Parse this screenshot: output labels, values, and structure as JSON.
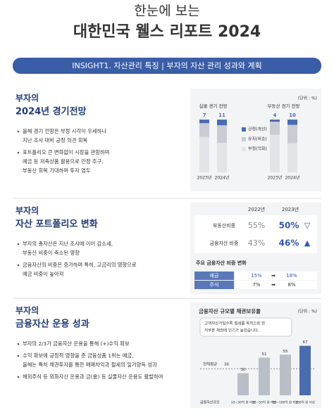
{
  "header": {
    "subtitle": "한눈에 보는",
    "title": "대한민국 웰스 리포트 2024"
  },
  "banner": "INSIGHT1. 자산관리 특징 | 부자의 자산 관리 성과와 계획",
  "sections": [
    {
      "heading": [
        "부자의",
        "2024년 경기전망"
      ],
      "bullets": [
        [
          "올해 경기 전망은 부정 시각이 우세하나",
          "지난 조사 대비 긍정 의견 회복"
        ],
        [
          "포트폴리오 큰 변화없이 시장을 관망하며",
          "예금 등 저축상품 활용으로 안정 추구,",
          "부동산 회복 기대하며 투자 염두"
        ]
      ]
    },
    {
      "heading": [
        "부자의",
        "자산 포트폴리오 변화"
      ],
      "bullets": [
        [
          "부자의 총자산은 지난 조사에 이어 감소세,",
          "부동산 비중이 축소된 영향"
        ],
        [
          "금융자산의 비중은 증가하며 특히, 고금리의 영향으로",
          "예금 비중이 높아져"
        ]
      ]
    },
    {
      "heading": [
        "부자의",
        "금융자산 운용 성과"
      ],
      "bullets": [
        [
          "부자의 2/3가 금융자산 운용을 통해 (+)수익 확보"
        ],
        [
          "수익 확보에 긍정적 영향을 준 금융상품 1위는 예금,",
          "올해는 특히 채권투자를 통한 매매차익과 절세의 일거양득 성과"
        ],
        [
          "해외주식 등 외화자산 운용과 금(金) 등 실물자산 운용도 활발하여"
        ]
      ]
    }
  ],
  "outlook_chart": {
    "type": "stacked-bar",
    "unit": "(단위 : %)",
    "legend": [
      {
        "name": "긍정(개선)",
        "color": "#4a6db0"
      },
      {
        "name": "유지(비슷)",
        "color": "#c9ccd2"
      },
      {
        "name": "부정(악화)",
        "color": "#e2e4e8"
      }
    ],
    "groups": [
      {
        "name": "실물 경기 전망",
        "categories": [
          "2023년",
          "2024년"
        ],
        "series": [
          {
            "values": [
              7,
              11
            ]
          },
          {
            "values": [
              26,
              33
            ]
          },
          {
            "values": [
              67,
              56
            ]
          }
        ]
      },
      {
        "name": "부동산 경기 전망",
        "categories": [
          "2023년",
          "2024년"
        ],
        "series": [
          {
            "values": [
              4,
              10
            ]
          },
          {
            "values": [
              25,
              35
            ]
          },
          {
            "values": [
              71,
              55
            ]
          }
        ]
      }
    ]
  },
  "portfolio_table": {
    "columns": [
      "2022년",
      "2023년"
    ],
    "rows": [
      [
        "부동산비중",
        "55%",
        "50%",
        "▽"
      ],
      [
        "금융자산 비중",
        "43%",
        "46%",
        "▲"
      ]
    ],
    "sub_title": "주요 금융자산 비중 변화",
    "sub_rows": [
      [
        "예금",
        "15%",
        "➡",
        "18%"
      ],
      [
        "주식",
        "7%",
        "➡",
        "8%"
      ]
    ]
  },
  "bond_chart": {
    "type": "bar",
    "title": "금융자산 규모별 채권보유율",
    "unit": "(단위 : %)",
    "note": [
      "고액자산가일수록 절세를 목적으로 한",
      "저쿠폰 채권에 인기가 높았습니다."
    ],
    "axis_label": "금융자산규모",
    "average": {
      "label": "전체평균",
      "value": 36
    },
    "categories": [
      "10~30억 원 미만",
      "30~50억 원 미만",
      "50~100억 원 미만",
      "100억 원 이상"
    ],
    "values": [
      30,
      51,
      55,
      67
    ],
    "color": "#b9bec7",
    "highlight_color": "#4a6db0"
  }
}
